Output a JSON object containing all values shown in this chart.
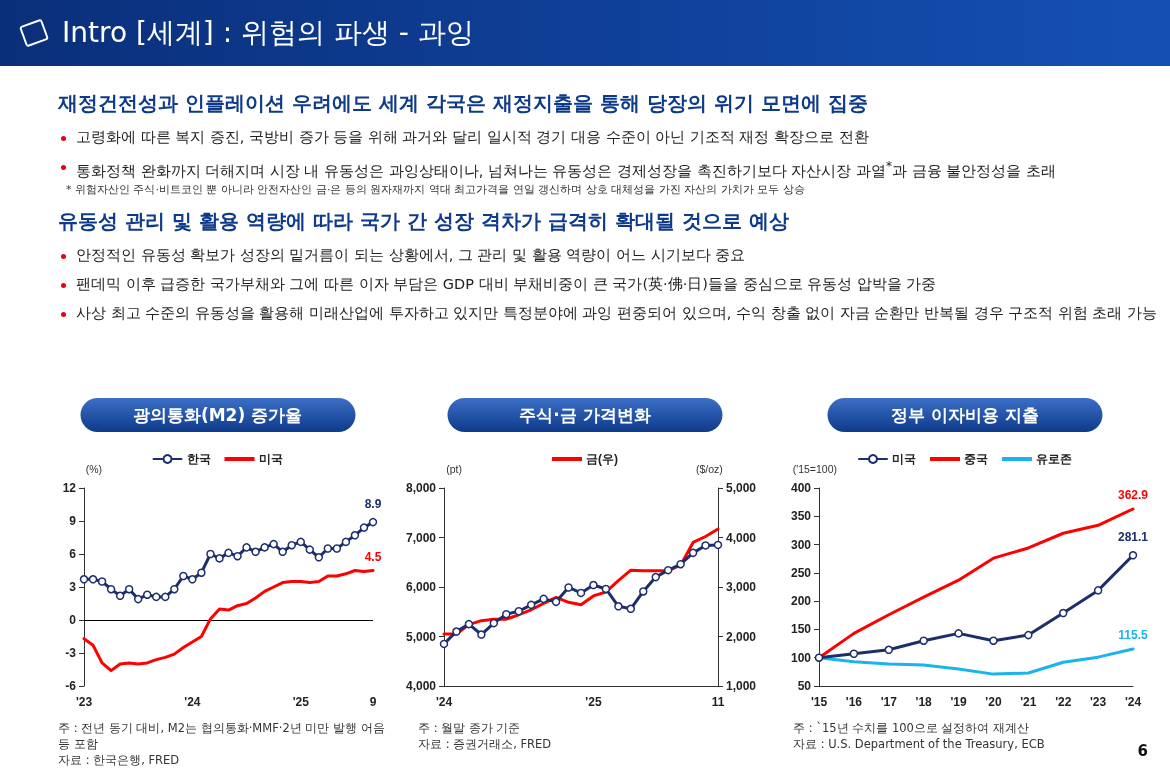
{
  "chart_data": [
    {
      "type": "other",
      "title": "Intro [세계] : 위험의 파생 - 과잉",
      "annotations": [
        "6"
      ]
    },
    {
      "type": "other",
      "title": "재정건전성과 인플레이션 우려에도 세계 각국은 재정지출을 통해 당장의 위기 모면에 집중",
      "subtitle": "* 위험자산인 주식·비트코인 뿐 아니라 안전자산인 금·은 등의 원자재까지 역대 최고가격을 연일 갱신하며 상호 대체성을 가진 자산의 가치가 모두 상승",
      "annotations": [
        "고령화에 따른 복지 증진, 국방비 증가 등을 위해 과거와 달리 일시적 경기 대응 수준이 아닌 기조적 재정 확장으로 전환",
        "통화정책 완화까지 더해지며 시장 내 유동성은 과잉상태이나, 넘쳐나는 유동성은 경제성장을 촉진하기보다 자산시장 과열$^{*}$과 금융 불안정성을 초래"
      ]
    },
    {
      "type": "other",
      "title": "유동성 관리 및 활용 역량에 따라 국가 간 성장 격차가 급격히 확대될 것으로 예상",
      "annotations": [
        "안정적인 유동성 확보가 성장의 밑거름이 되는 상황에서, 그 관리 및 활용 역량이 어느 시기보다 중요",
        "팬데믹 이후 급증한 국가부채와 그에 따른 이자 부담은 GDP 대비 부채비중이 큰 국가(英·佛·日)들을 중심으로 유동성 압박을 가중",
        "사상 최고 수준의 유동성을 활용해 미래산업에 투자하고 있지만 특정분야에 과잉 편중되어 있으며, 수익 창출 없이 자금 순환만 반복될 경우 구조적 위험 초래 가능"
      ]
    },
    {
      "type": "line",
      "title": "광의통화(M2) 증가율",
      "ylabel": "(%)",
      "legend": "top",
      "ylim": [
        -6,
        12
      ],
      "yticks": [
        -6,
        -3,
        0,
        3,
        6,
        9,
        12
      ],
      "ref_lines": [
        {
          "axis": "y",
          "value": 0
        }
      ],
      "categories": [
        "'23",
        null,
        null,
        null,
        null,
        null,
        null,
        null,
        null,
        null,
        null,
        null,
        "'24",
        null,
        null,
        null,
        null,
        null,
        null,
        null,
        null,
        null,
        null,
        null,
        "'25",
        null,
        null,
        null,
        null,
        null,
        null,
        null,
        "9"
      ],
      "series": [
        {
          "name": "한국",
          "color": "#1c2e6b",
          "marker": "circle",
          "values": [
            3.7,
            3.7,
            3.5,
            2.8,
            2.2,
            2.8,
            1.9,
            2.3,
            2.1,
            2.1,
            2.8,
            4.0,
            3.7,
            4.3,
            6.0,
            5.6,
            6.1,
            5.8,
            6.6,
            6.2,
            6.6,
            6.9,
            6.2,
            6.8,
            7.1,
            6.4,
            5.7,
            6.5,
            6.5,
            7.1,
            7.7,
            8.4,
            8.9
          ],
          "value_labels": [
            null,
            null,
            null,
            null,
            null,
            null,
            null,
            null,
            null,
            null,
            null,
            null,
            null,
            null,
            null,
            null,
            null,
            null,
            null,
            null,
            null,
            null,
            null,
            null,
            null,
            null,
            null,
            null,
            null,
            null,
            null,
            null,
            "8.9"
          ]
        },
        {
          "name": "미국",
          "color": "#ff0000",
          "marker": "none",
          "values": [
            -1.7,
            -2.3,
            -3.9,
            -4.6,
            -4.0,
            -3.9,
            -4.0,
            -3.9,
            -3.6,
            -3.4,
            -3.1,
            -2.5,
            -2.0,
            -1.5,
            0.1,
            1.0,
            0.9,
            1.3,
            1.5,
            2.0,
            2.6,
            3.0,
            3.4,
            3.5,
            3.5,
            3.4,
            3.5,
            4.0,
            4.0,
            4.2,
            4.5,
            4.4,
            4.5
          ],
          "value_labels": [
            null,
            null,
            null,
            null,
            null,
            null,
            null,
            null,
            null,
            null,
            null,
            null,
            null,
            null,
            null,
            null,
            null,
            null,
            null,
            null,
            null,
            null,
            null,
            null,
            null,
            null,
            null,
            null,
            null,
            null,
            null,
            null,
            "4.5"
          ]
        }
      ],
      "annotations": [
        "주 : 전년 동기 대비, M2는 협의통화·MMF·2년 미만 발행 어음 등 포함",
        "자료 : 한국은행, FRED"
      ]
    },
    {
      "type": "line",
      "title": "주식·금 가격변화",
      "ylabel": "(pt)",
      "y2label": "($/oz)",
      "legend": "top",
      "ylim": [
        4000,
        8000
      ],
      "yticks": [
        {
          "value": 4000,
          "label": "4,000"
        },
        {
          "value": 5000,
          "label": "5,000"
        },
        {
          "value": 6000,
          "label": "6,000"
        },
        {
          "value": 7000,
          "label": "7,000"
        },
        {
          "value": 8000,
          "label": "8,000"
        }
      ],
      "y2lim": [
        1000,
        5000
      ],
      "y2ticks": [
        {
          "value": 1000,
          "label": "1,000"
        },
        {
          "value": 2000,
          "label": "2,000"
        },
        {
          "value": 3000,
          "label": "3,000"
        },
        {
          "value": 4000,
          "label": "4,000"
        },
        {
          "value": 5000,
          "label": "5,000"
        }
      ],
      "categories": [
        "'24",
        null,
        null,
        null,
        null,
        null,
        null,
        null,
        null,
        null,
        null,
        null,
        "'25",
        null,
        null,
        null,
        null,
        null,
        null,
        null,
        null,
        null,
        "11"
      ],
      "series": [
        {
          "color": "#1c2e6b",
          "marker": "circle",
          "values": [
            4850,
            5100,
            5250,
            5040,
            5270,
            5450,
            5510,
            5640,
            5760,
            5700,
            5990,
            5880,
            6040,
            5960,
            5610,
            5560,
            5910,
            6200,
            6340,
            6460,
            6690,
            6840,
            6850
          ]
        },
        {
          "name": "금(우)",
          "color": "#ff0000",
          "marker": "none",
          "axis": "y2",
          "values": [
            2050,
            2050,
            2240,
            2320,
            2350,
            2350,
            2440,
            2540,
            2670,
            2790,
            2690,
            2640,
            2820,
            2900,
            3130,
            3340,
            3330,
            3330,
            3330,
            3440,
            3900,
            4020,
            4170
          ]
        }
      ],
      "annotations": [
        "주 : 월말 종가 기준",
        "자료 : 증권거래소, FRED"
      ]
    },
    {
      "type": "line",
      "title": "정부 이자비용 지출",
      "ylabel": "('15=100)",
      "legend": "top",
      "ylim": [
        50,
        400
      ],
      "yticks": [
        50,
        100,
        150,
        200,
        250,
        300,
        350,
        400
      ],
      "categories": [
        "'15",
        "'16",
        "'17",
        "'18",
        "'19",
        "'20",
        "'21",
        "'22",
        "'23",
        "'24"
      ],
      "series": [
        {
          "name": "미국",
          "color": "#1c2e6b",
          "marker": "circle",
          "values": [
            100,
            107,
            114,
            130,
            143,
            130,
            140,
            179,
            219,
            281.1
          ],
          "value_labels": [
            null,
            null,
            null,
            null,
            null,
            null,
            null,
            null,
            null,
            "281.1"
          ]
        },
        {
          "name": "중국",
          "color": "#ff0000",
          "marker": "none",
          "values": [
            100,
            143,
            176,
            207,
            237,
            276,
            294,
            320,
            334,
            362.9
          ],
          "value_labels": [
            null,
            null,
            null,
            null,
            null,
            null,
            null,
            null,
            null,
            "362.9"
          ]
        },
        {
          "name": "유로존",
          "color": "#1ab4ec",
          "marker": "none",
          "values": [
            100,
            93,
            89,
            87,
            80,
            71,
            73,
            92,
            101,
            115.5
          ],
          "value_labels": [
            null,
            null,
            null,
            null,
            null,
            null,
            null,
            null,
            null,
            "115.5"
          ]
        }
      ],
      "annotations": [
        "주 : `15년 수치를 100으로 설정하여 재계산",
        "자료 : U.S. Department of the Treasury, ECB"
      ]
    }
  ]
}
